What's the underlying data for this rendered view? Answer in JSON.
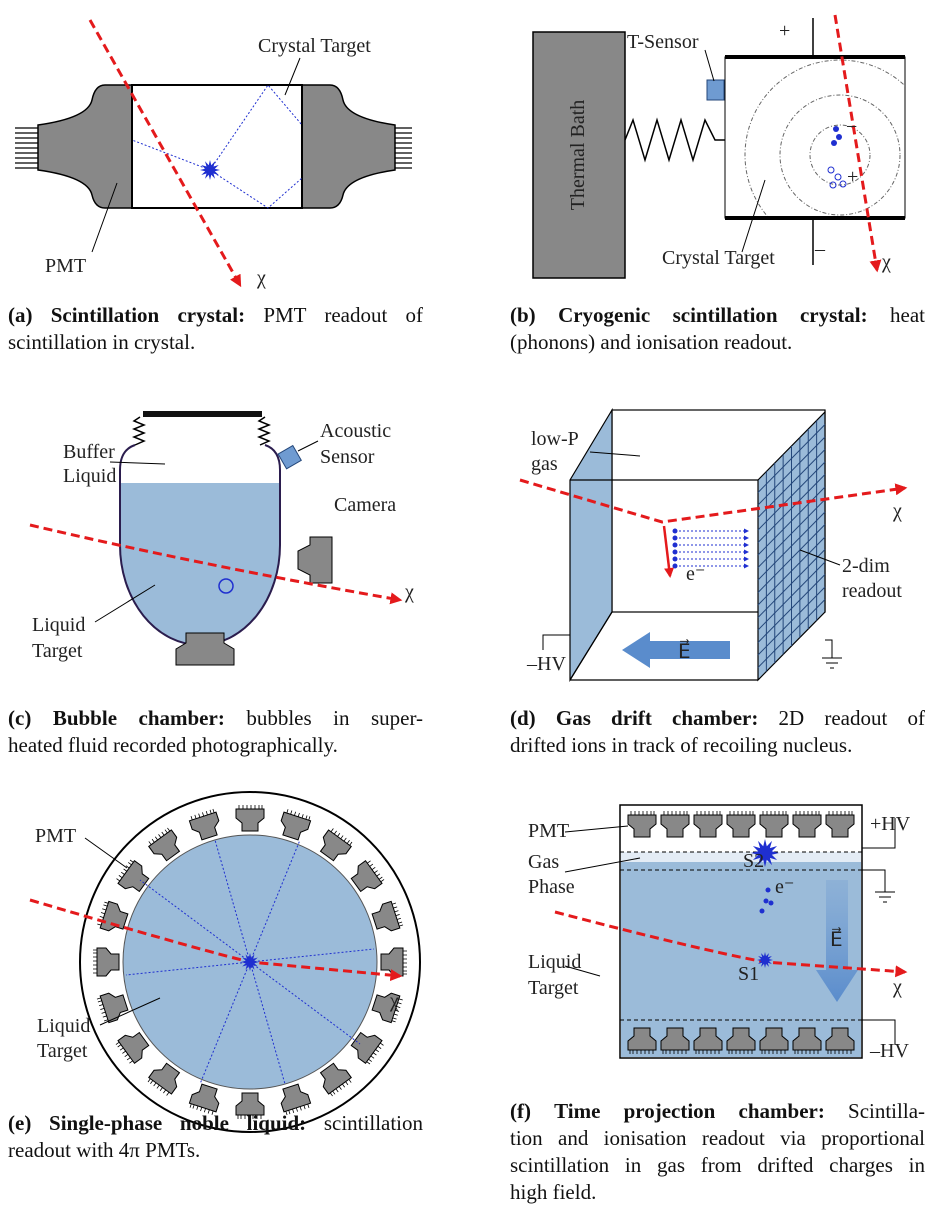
{
  "panels": [
    {
      "id": "a",
      "labels": {
        "crystal_target": "Crystal Target",
        "pmt": "PMT",
        "chi": "χ"
      },
      "caption": {
        "label": "(a)",
        "title": "Scintillation crystal:",
        "lines": [
          "PMT readout of",
          "scintillation in crystal."
        ]
      }
    },
    {
      "id": "b",
      "labels": {
        "t_sensor": "T-Sensor",
        "plus": "+",
        "thermal_bath": "Thermal Bath",
        "minus_blue": "−",
        "plus_blue": "+",
        "crystal_target": "Crystal Target",
        "minus": "–",
        "chi": "χ"
      },
      "caption": {
        "label": "(b)",
        "title": "Cryogenic scintillation crystal:",
        "lines": [
          "heat",
          "(phonons) and ionisation readout."
        ]
      }
    },
    {
      "id": "c",
      "labels": {
        "buffer_liquid": [
          "Buffer",
          "Liquid"
        ],
        "acoustic_sensor": [
          "Acoustic",
          "Sensor"
        ],
        "camera": "Camera",
        "liquid_target": [
          "Liquid",
          "Target"
        ],
        "chi": "χ"
      },
      "caption": {
        "label": "(c)",
        "title": "Bubble chamber:",
        "lines": [
          "bubbles in super-",
          "heated fluid recorded photographically."
        ]
      }
    },
    {
      "id": "d",
      "labels": {
        "low_p_gas": [
          "low-P",
          "gas"
        ],
        "two_dim_readout": [
          "2-dim",
          "readout"
        ],
        "electron": "e⁻",
        "field": "E⃗",
        "hv": "–HV",
        "chi": "χ"
      },
      "caption": {
        "label": "(d)",
        "title": "Gas drift chamber:",
        "lines": [
          "2D readout of",
          "drifted ions in track of recoiling nucleus."
        ]
      }
    },
    {
      "id": "e",
      "labels": {
        "pmt": "PMT",
        "liquid_target": [
          "Liquid",
          "Target"
        ],
        "chi": "χ"
      },
      "caption": {
        "label": "(e)",
        "title": "Single-phase noble liquid:",
        "lines": [
          "scintillation",
          "readout with 4π PMTs."
        ]
      }
    },
    {
      "id": "f",
      "labels": {
        "pmt": "PMT",
        "hv_plus": "+HV",
        "gas_phase": [
          "Gas",
          "Phase"
        ],
        "s2": "S2",
        "electron": "e⁻",
        "field": "E⃗",
        "liquid_target": [
          "Liquid",
          "Target"
        ],
        "s1": "S1",
        "chi": "χ",
        "hv_minus": "–HV"
      },
      "caption": {
        "label": "(f)",
        "title": "Time projection chamber:",
        "lines": [
          "Scintilla-",
          "tion and ionisation readout via proportional",
          "scintillation in gas from drifted charges in",
          "high field."
        ]
      }
    }
  ]
}
